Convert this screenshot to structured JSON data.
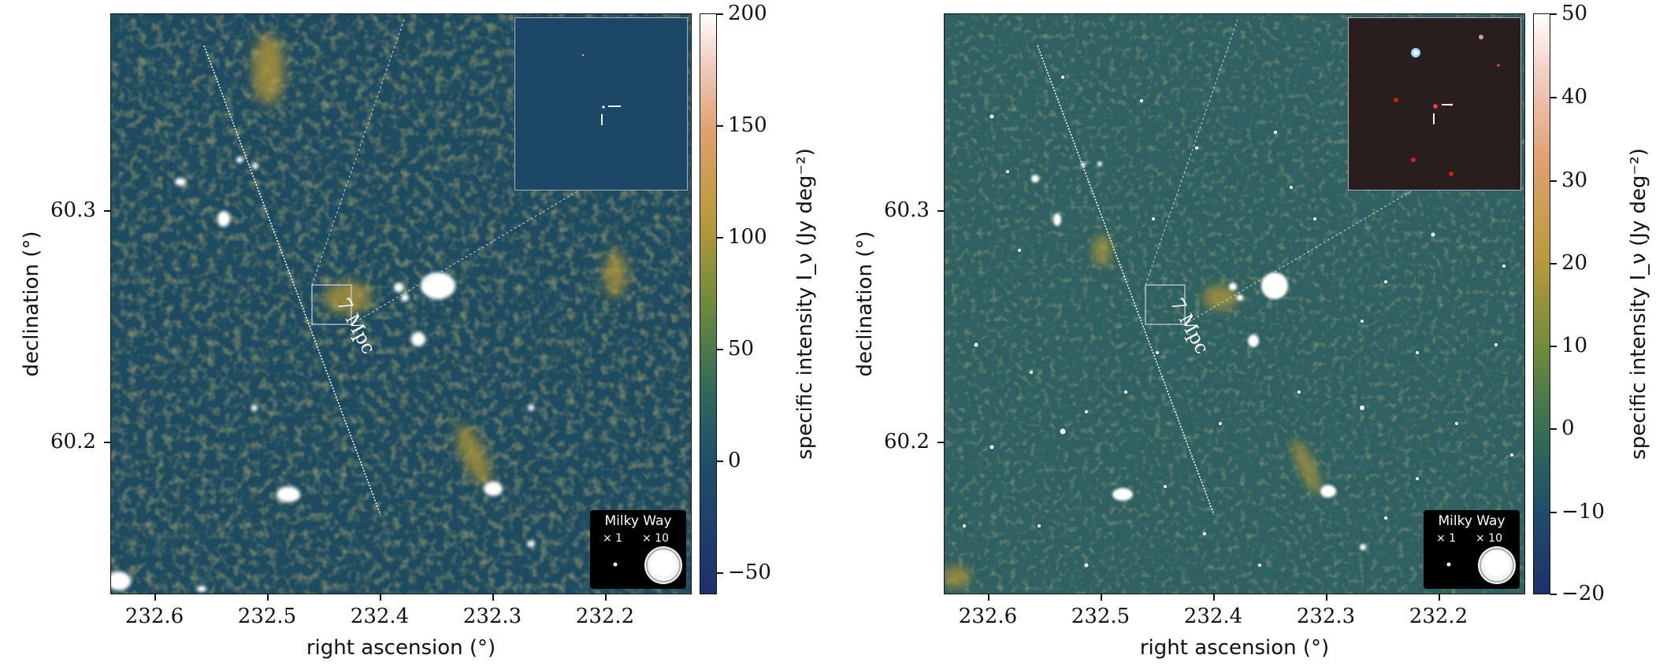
{
  "panels": [
    {
      "xlabel": "right ascension (°)",
      "ylabel": "declination (°)",
      "xticks": [
        "232.6",
        "232.5",
        "232.4",
        "232.3",
        "232.2"
      ],
      "yticks": [
        "60.3",
        "60.2"
      ],
      "colorbar_label": "specific intensity I_ν (Jy deg⁻²)",
      "colorbar_ticks": [
        "200",
        "150",
        "100",
        "50",
        "0",
        "−50"
      ],
      "scale_label": "7 Mpc",
      "milky_way_title": "Milky Way",
      "milky_way_x1": "× 1",
      "milky_way_x10": "× 10"
    },
    {
      "xlabel": "right ascension (°)",
      "ylabel": "declination (°)",
      "xticks": [
        "232.6",
        "232.5",
        "232.4",
        "232.3",
        "232.2"
      ],
      "yticks": [
        "60.3",
        "60.2"
      ],
      "colorbar_label": "specific intensity I_ν (Jy deg⁻²)",
      "colorbar_ticks": [
        "50",
        "40",
        "30",
        "20",
        "10",
        "0",
        "−10",
        "−20"
      ],
      "scale_label": "7 Mpc",
      "milky_way_title": "Milky Way",
      "milky_way_x1": "× 1",
      "milky_way_x10": "× 10"
    }
  ],
  "colors": {
    "map_background_left": "#1e4b5e",
    "map_background_right": "#2c5f5f",
    "emission": "#b8972e",
    "source": "#ffffff"
  }
}
